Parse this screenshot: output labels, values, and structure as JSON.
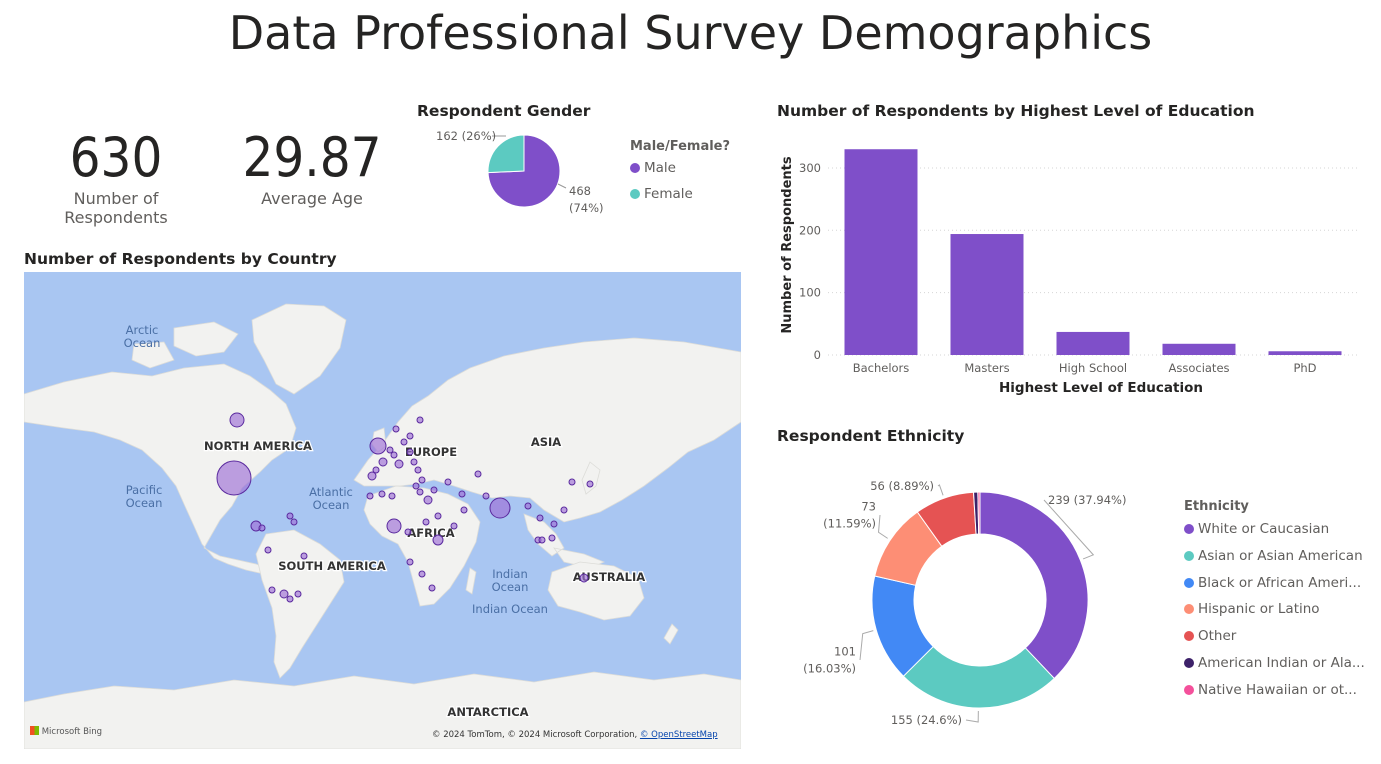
{
  "title": "Data Professional Survey Demographics",
  "kpis": {
    "respondents": {
      "value": "630",
      "label": "Number of Respondents"
    },
    "age": {
      "value": "29.87",
      "label": "Average Age"
    }
  },
  "colors": {
    "male": "#7f4fc9",
    "female": "#5ccac1",
    "white": "#7f4fc9",
    "asian": "#5ccac1",
    "black": "#4289f5",
    "hispanic": "#fd8e75",
    "other": "#e55353",
    "native_american": "#3d2169",
    "hawaiian": "#f4509b",
    "bar": "#7f4fc9",
    "ocean": "#a9c6f2",
    "land": "#f2f2f0"
  },
  "chart_data": [
    {
      "type": "pie",
      "title": "Respondent Gender",
      "legend_title": "Male/Female?",
      "legend_position": "right",
      "slices": [
        {
          "name": "Male",
          "value": 468,
          "label_value": "468",
          "label_pct": "(74%)"
        },
        {
          "name": "Female",
          "value": 162,
          "label_value": "162",
          "label_pct": "(26%)"
        }
      ]
    },
    {
      "type": "bar",
      "title": "Number of Respondents by Highest Level of Education",
      "xlabel": "Highest Level of Education",
      "ylabel": "Number of Respondents",
      "categories": [
        "Bachelors",
        "Masters",
        "High School",
        "Associates",
        "PhD"
      ],
      "values": [
        330,
        194,
        37,
        18,
        6
      ],
      "ylim": [
        0,
        340
      ],
      "yticks": [
        0,
        100,
        200,
        300
      ],
      "grid": true
    },
    {
      "type": "pie",
      "subtype": "donut",
      "title": "Respondent Ethnicity",
      "legend_title": "Ethnicity",
      "legend_position": "right",
      "slices": [
        {
          "name": "White or Caucasian",
          "legend": "White or Caucasian",
          "value": 239,
          "label": "239 (37.94%)"
        },
        {
          "name": "Asian or Asian American",
          "legend": "Asian or Asian American",
          "value": 155,
          "label": "155 (24.6%)"
        },
        {
          "name": "Black or African American",
          "legend": "Black or African Ameri...",
          "value": 101,
          "label": "101 (16.03%)"
        },
        {
          "name": "Hispanic or Latino",
          "legend": "Hispanic or Latino",
          "value": 73,
          "label": "73 (11.59%)"
        },
        {
          "name": "Other",
          "legend": "Other",
          "value": 56,
          "label": "56 (8.89%)"
        },
        {
          "name": "American Indian or Alaska Native",
          "legend": "American Indian or Ala...",
          "value": 4,
          "label": ""
        },
        {
          "name": "Native Hawaiian or other Pacific Islander",
          "legend": "Native Hawaiian or ot...",
          "value": 2,
          "label": ""
        }
      ]
    },
    {
      "type": "map",
      "title": "Number of Respondents by Country",
      "labels": {
        "continents": [
          "NORTH AMERICA",
          "SOUTH AMERICA",
          "EUROPE",
          "AFRICA",
          "ASIA",
          "AUSTRALIA",
          "ANTARCTICA"
        ],
        "oceans": [
          "Arctic Ocean",
          "Pacific Ocean",
          "Atlantic Ocean",
          "Indian Ocean",
          "Indian Ocean"
        ]
      },
      "attribution": "© 2024 TomTom, © 2024 Microsoft Corporation, ",
      "attribution_link": "© OpenStreetMap",
      "logo": "Microsoft Bing"
    }
  ]
}
